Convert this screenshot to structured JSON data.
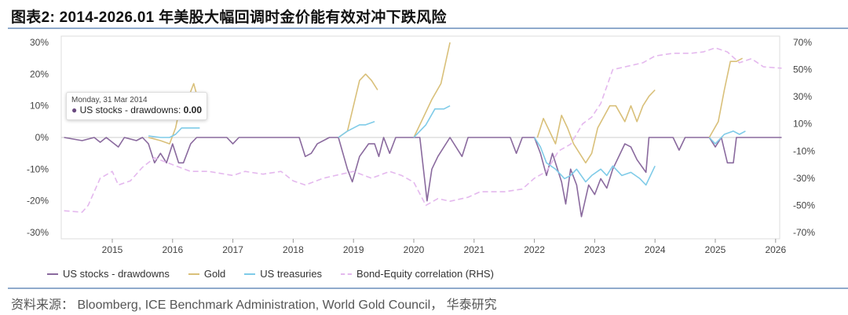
{
  "title": "图表2:  2014-2026.01 年美股大幅回调时金价能有效对冲下跌风险",
  "source": "资料来源： Bloomberg, ICE Benchmark Administration, World Gold  Council，  华泰研究",
  "tooltip": {
    "date": "Monday, 31 Mar 2014",
    "series": "US stocks - drawdowns: ",
    "value": "0.00"
  },
  "chart_data": {
    "type": "line",
    "title": "",
    "xlabel": "",
    "ylabel": "",
    "x_ticks": [
      "2015",
      "2016",
      "2017",
      "2018",
      "2019",
      "2020",
      "2021",
      "2022",
      "2023",
      "2024",
      "2025",
      "2026"
    ],
    "ylim": [
      -30,
      30
    ],
    "y_ticks": [
      "30%",
      "20%",
      "10%",
      "0%",
      "-10%",
      "-20%",
      "-30%"
    ],
    "y2lim": [
      -70,
      70
    ],
    "y2_ticks": [
      "70%",
      "50%",
      "30%",
      "10%",
      "-10%",
      "-30%",
      "-50%",
      "-70%"
    ],
    "grid": "horizontal zero line only",
    "legend": "bottom",
    "series": [
      {
        "name": "US stocks - drawdowns",
        "color": "#8a6a9e",
        "axis": "left",
        "dash": false,
        "points": [
          [
            2014.2,
            0
          ],
          [
            2014.5,
            -1
          ],
          [
            2014.7,
            0
          ],
          [
            2014.8,
            -1.5
          ],
          [
            2014.9,
            0
          ],
          [
            2015.1,
            -3
          ],
          [
            2015.2,
            0
          ],
          [
            2015.4,
            -1
          ],
          [
            2015.5,
            0
          ],
          [
            2015.6,
            -2
          ],
          [
            2015.7,
            -8
          ],
          [
            2015.8,
            -5
          ],
          [
            2015.9,
            -8
          ],
          [
            2016.0,
            -2
          ],
          [
            2016.1,
            -8
          ],
          [
            2016.18,
            -8
          ],
          [
            2016.3,
            -2
          ],
          [
            2016.4,
            0
          ],
          [
            2016.9,
            0
          ],
          [
            2017.0,
            -2
          ],
          [
            2017.1,
            0
          ],
          [
            2018.1,
            0
          ],
          [
            2018.2,
            -6
          ],
          [
            2018.3,
            -5
          ],
          [
            2018.4,
            -2
          ],
          [
            2018.6,
            0
          ],
          [
            2018.75,
            0
          ],
          [
            2018.9,
            -10
          ],
          [
            2018.98,
            -14
          ],
          [
            2019.1,
            -6
          ],
          [
            2019.25,
            -2
          ],
          [
            2019.35,
            -2
          ],
          [
            2019.42,
            -6
          ],
          [
            2019.5,
            0
          ],
          [
            2019.6,
            -5
          ],
          [
            2019.7,
            0
          ],
          [
            2020.1,
            0
          ],
          [
            2020.22,
            -20
          ],
          [
            2020.3,
            -10
          ],
          [
            2020.4,
            -6
          ],
          [
            2020.6,
            0
          ],
          [
            2020.8,
            -6
          ],
          [
            2020.9,
            0
          ],
          [
            2021.6,
            0
          ],
          [
            2021.7,
            -5
          ],
          [
            2021.8,
            0
          ],
          [
            2022.0,
            0
          ],
          [
            2022.1,
            -5
          ],
          [
            2022.2,
            -12
          ],
          [
            2022.3,
            -5
          ],
          [
            2022.45,
            -14
          ],
          [
            2022.52,
            -21
          ],
          [
            2022.6,
            -10
          ],
          [
            2022.7,
            -15
          ],
          [
            2022.78,
            -25
          ],
          [
            2022.9,
            -15
          ],
          [
            2023.0,
            -18
          ],
          [
            2023.1,
            -13
          ],
          [
            2023.2,
            -16
          ],
          [
            2023.3,
            -10
          ],
          [
            2023.5,
            -2
          ],
          [
            2023.6,
            -3
          ],
          [
            2023.7,
            -7
          ],
          [
            2023.85,
            -11
          ],
          [
            2023.9,
            0
          ],
          [
            2024.3,
            0
          ],
          [
            2024.4,
            -4
          ],
          [
            2024.5,
            0
          ],
          [
            2024.9,
            0
          ],
          [
            2025.0,
            -3
          ],
          [
            2025.1,
            0
          ],
          [
            2025.2,
            -8
          ],
          [
            2025.3,
            -8
          ],
          [
            2025.35,
            0
          ],
          [
            2026.1,
            0
          ]
        ]
      },
      {
        "name": "Gold",
        "color": "#d9c07a",
        "axis": "left",
        "dash": false,
        "segments": [
          [
            [
              2015.6,
              0
            ],
            [
              2015.8,
              -1
            ],
            [
              2015.95,
              -2
            ],
            [
              2016.05,
              3
            ],
            [
              2016.15,
              12
            ],
            [
              2016.25,
              12
            ],
            [
              2016.35,
              17
            ],
            [
              2016.45,
              10
            ]
          ],
          [
            [
              2018.75,
              0
            ],
            [
              2018.9,
              2
            ],
            [
              2019.0,
              10
            ],
            [
              2019.1,
              18
            ],
            [
              2019.2,
              20
            ],
            [
              2019.3,
              18
            ],
            [
              2019.4,
              15
            ]
          ],
          [
            [
              2020.0,
              0
            ],
            [
              2020.2,
              8
            ],
            [
              2020.3,
              12
            ],
            [
              2020.45,
              17
            ],
            [
              2020.6,
              30
            ]
          ],
          [
            [
              2022.05,
              0
            ],
            [
              2022.15,
              6
            ],
            [
              2022.25,
              2
            ],
            [
              2022.35,
              -2
            ],
            [
              2022.45,
              7
            ],
            [
              2022.55,
              3
            ],
            [
              2022.65,
              -2
            ],
            [
              2022.85,
              -8
            ],
            [
              2022.95,
              -5
            ],
            [
              2023.05,
              3
            ],
            [
              2023.25,
              10
            ],
            [
              2023.35,
              10
            ],
            [
              2023.5,
              5
            ],
            [
              2023.6,
              10
            ],
            [
              2023.7,
              5
            ],
            [
              2023.8,
              10
            ],
            [
              2023.9,
              13
            ],
            [
              2024.0,
              15
            ]
          ],
          [
            [
              2024.9,
              0
            ],
            [
              2025.05,
              5
            ],
            [
              2025.15,
              15
            ],
            [
              2025.25,
              24
            ],
            [
              2025.35,
              24
            ],
            [
              2025.45,
              25
            ]
          ]
        ]
      },
      {
        "name": "US treasuries",
        "color": "#7fcbe8",
        "axis": "left",
        "dash": false,
        "segments": [
          [
            [
              2015.6,
              0.5
            ],
            [
              2015.8,
              0
            ],
            [
              2015.95,
              0
            ],
            [
              2016.05,
              1
            ],
            [
              2016.15,
              3
            ],
            [
              2016.3,
              3
            ],
            [
              2016.45,
              3
            ]
          ],
          [
            [
              2018.75,
              0
            ],
            [
              2018.9,
              2
            ],
            [
              2019.0,
              3
            ],
            [
              2019.1,
              4
            ],
            [
              2019.2,
              4
            ],
            [
              2019.35,
              5
            ]
          ],
          [
            [
              2020.0,
              0
            ],
            [
              2020.2,
              4
            ],
            [
              2020.35,
              9
            ],
            [
              2020.5,
              9
            ],
            [
              2020.6,
              10
            ]
          ],
          [
            [
              2022.0,
              0
            ],
            [
              2022.1,
              -3
            ],
            [
              2022.2,
              -8
            ],
            [
              2022.35,
              -10
            ],
            [
              2022.5,
              -13
            ],
            [
              2022.6,
              -12
            ],
            [
              2022.7,
              -10
            ],
            [
              2022.85,
              -14
            ],
            [
              2022.95,
              -12
            ],
            [
              2023.1,
              -10
            ],
            [
              2023.2,
              -12
            ],
            [
              2023.3,
              -9
            ],
            [
              2023.45,
              -12
            ],
            [
              2023.6,
              -11
            ],
            [
              2023.75,
              -13
            ],
            [
              2023.85,
              -15
            ],
            [
              2024.0,
              -9
            ]
          ],
          [
            [
              2024.9,
              0
            ],
            [
              2025.0,
              -2
            ],
            [
              2025.15,
              1
            ],
            [
              2025.3,
              2
            ],
            [
              2025.4,
              1
            ],
            [
              2025.5,
              2
            ]
          ]
        ]
      },
      {
        "name": "Bond-Equity correlation (RHS)",
        "color": "#e4b8ee",
        "axis": "right",
        "dash": true,
        "points": [
          [
            2014.2,
            -54
          ],
          [
            2014.5,
            -55
          ],
          [
            2014.6,
            -50
          ],
          [
            2014.8,
            -30
          ],
          [
            2015.0,
            -25
          ],
          [
            2015.1,
            -35
          ],
          [
            2015.3,
            -32
          ],
          [
            2015.5,
            -22
          ],
          [
            2015.7,
            -15
          ],
          [
            2016.0,
            -20
          ],
          [
            2016.3,
            -25
          ],
          [
            2016.6,
            -25
          ],
          [
            2017.0,
            -28
          ],
          [
            2017.2,
            -25
          ],
          [
            2017.5,
            -27
          ],
          [
            2017.8,
            -25
          ],
          [
            2018.0,
            -32
          ],
          [
            2018.2,
            -35
          ],
          [
            2018.5,
            -30
          ],
          [
            2018.7,
            -28
          ],
          [
            2019.0,
            -25
          ],
          [
            2019.3,
            -30
          ],
          [
            2019.6,
            -25
          ],
          [
            2019.8,
            -28
          ],
          [
            2020.0,
            -33
          ],
          [
            2020.2,
            -50
          ],
          [
            2020.4,
            -45
          ],
          [
            2020.6,
            -47
          ],
          [
            2020.9,
            -44
          ],
          [
            2021.1,
            -40
          ],
          [
            2021.5,
            -40
          ],
          [
            2021.8,
            -38
          ],
          [
            2022.0,
            -30
          ],
          [
            2022.2,
            -25
          ],
          [
            2022.4,
            -10
          ],
          [
            2022.6,
            -5
          ],
          [
            2022.8,
            10
          ],
          [
            2022.95,
            15
          ],
          [
            2023.1,
            25
          ],
          [
            2023.3,
            50
          ],
          [
            2023.6,
            53
          ],
          [
            2023.8,
            55
          ],
          [
            2024.0,
            60
          ],
          [
            2024.3,
            62
          ],
          [
            2024.6,
            62
          ],
          [
            2024.8,
            63
          ],
          [
            2025.0,
            66
          ],
          [
            2025.2,
            63
          ],
          [
            2025.4,
            55
          ],
          [
            2025.6,
            58
          ],
          [
            2025.8,
            52
          ],
          [
            2026.1,
            51
          ]
        ]
      }
    ]
  }
}
